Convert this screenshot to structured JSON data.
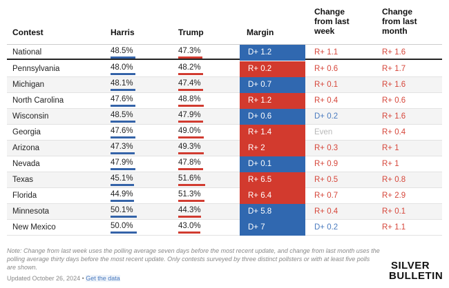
{
  "header": {
    "contest": "Contest",
    "harris": "Harris",
    "trump": "Trump",
    "margin": "Margin",
    "week": "Change from last week",
    "month": "Change from last month"
  },
  "colors": {
    "harris_bar": "#3463a8",
    "trump_bar": "#d13b30"
  },
  "table": {
    "rows": [
      {
        "contest": "National",
        "harris": {
          "value": 48.5,
          "label": "48.5%"
        },
        "trump": {
          "value": 47.3,
          "label": "47.3%"
        },
        "margin": {
          "text": "D+ 1.2",
          "color": "#3068b0"
        },
        "week": {
          "text": "R+ 1.1",
          "color": "#d6463a"
        },
        "month": {
          "text": "R+ 1.6",
          "color": "#d6463a"
        }
      },
      {
        "contest": "Pennsylvania",
        "harris": {
          "value": 48.0,
          "label": "48.0%"
        },
        "trump": {
          "value": 48.2,
          "label": "48.2%"
        },
        "margin": {
          "text": "R+ 0.2",
          "color": "#d23a2e"
        },
        "week": {
          "text": "R+ 0.6",
          "color": "#d6463a"
        },
        "month": {
          "text": "R+ 1.7",
          "color": "#d6463a"
        }
      },
      {
        "contest": "Michigan",
        "harris": {
          "value": 48.1,
          "label": "48.1%"
        },
        "trump": {
          "value": 47.4,
          "label": "47.4%"
        },
        "margin": {
          "text": "D+ 0.7",
          "color": "#3068b0"
        },
        "week": {
          "text": "R+ 0.1",
          "color": "#d6463a"
        },
        "month": {
          "text": "R+ 1.6",
          "color": "#d6463a"
        }
      },
      {
        "contest": "North Carolina",
        "harris": {
          "value": 47.6,
          "label": "47.6%"
        },
        "trump": {
          "value": 48.8,
          "label": "48.8%"
        },
        "margin": {
          "text": "R+ 1.2",
          "color": "#d23a2e"
        },
        "week": {
          "text": "R+ 0.4",
          "color": "#d6463a"
        },
        "month": {
          "text": "R+ 0.6",
          "color": "#d6463a"
        }
      },
      {
        "contest": "Wisconsin",
        "harris": {
          "value": 48.5,
          "label": "48.5%"
        },
        "trump": {
          "value": 47.9,
          "label": "47.9%"
        },
        "margin": {
          "text": "D+ 0.6",
          "color": "#3068b0"
        },
        "week": {
          "text": "D+ 0.2",
          "color": "#4a7bbf"
        },
        "month": {
          "text": "R+ 1.6",
          "color": "#d6463a"
        }
      },
      {
        "contest": "Georgia",
        "harris": {
          "value": 47.6,
          "label": "47.6%"
        },
        "trump": {
          "value": 49.0,
          "label": "49.0%"
        },
        "margin": {
          "text": "R+ 1.4",
          "color": "#d23a2e"
        },
        "week": {
          "text": "Even",
          "color": "#b8b8b8"
        },
        "month": {
          "text": "R+ 0.4",
          "color": "#d6463a"
        }
      },
      {
        "contest": "Arizona",
        "harris": {
          "value": 47.3,
          "label": "47.3%"
        },
        "trump": {
          "value": 49.3,
          "label": "49.3%"
        },
        "margin": {
          "text": "R+ 2",
          "color": "#d23a2e"
        },
        "week": {
          "text": "R+ 0.3",
          "color": "#d6463a"
        },
        "month": {
          "text": "R+ 1",
          "color": "#d6463a"
        }
      },
      {
        "contest": "Nevada",
        "harris": {
          "value": 47.9,
          "label": "47.9%"
        },
        "trump": {
          "value": 47.8,
          "label": "47.8%"
        },
        "margin": {
          "text": "D+ 0.1",
          "color": "#3068b0"
        },
        "week": {
          "text": "R+ 0.9",
          "color": "#d6463a"
        },
        "month": {
          "text": "R+ 1",
          "color": "#d6463a"
        }
      },
      {
        "contest": "Texas",
        "harris": {
          "value": 45.1,
          "label": "45.1%"
        },
        "trump": {
          "value": 51.6,
          "label": "51.6%"
        },
        "margin": {
          "text": "R+ 6.5",
          "color": "#d23a2e"
        },
        "week": {
          "text": "R+ 0.5",
          "color": "#d6463a"
        },
        "month": {
          "text": "R+ 0.8",
          "color": "#d6463a"
        }
      },
      {
        "contest": "Florida",
        "harris": {
          "value": 44.9,
          "label": "44.9%"
        },
        "trump": {
          "value": 51.3,
          "label": "51.3%"
        },
        "margin": {
          "text": "R+ 6.4",
          "color": "#d23a2e"
        },
        "week": {
          "text": "R+ 0.7",
          "color": "#d6463a"
        },
        "month": {
          "text": "R+ 2.9",
          "color": "#d6463a"
        }
      },
      {
        "contest": "Minnesota",
        "harris": {
          "value": 50.1,
          "label": "50.1%"
        },
        "trump": {
          "value": 44.3,
          "label": "44.3%"
        },
        "margin": {
          "text": "D+ 5.8",
          "color": "#3068b0"
        },
        "week": {
          "text": "R+ 0.4",
          "color": "#d6463a"
        },
        "month": {
          "text": "R+ 0.1",
          "color": "#d6463a"
        }
      },
      {
        "contest": "New Mexico",
        "harris": {
          "value": 50.0,
          "label": "50.0%"
        },
        "trump": {
          "value": 43.0,
          "label": "43.0%"
        },
        "margin": {
          "text": "D+ 7",
          "color": "#3068b0"
        },
        "week": {
          "text": "D+ 0.2",
          "color": "#4a7bbf"
        },
        "month": {
          "text": "R+ 1.1",
          "color": "#d6463a"
        }
      }
    ]
  },
  "footer": {
    "note": "Note: Change from last week uses the polling average seven days before the most recent update, and change from last month uses the polling average thirty days before the most recent update. Only contests surveyed by three distinct pollsters or with at least five polls are shown.",
    "updated": "Updated October 26, 2024 •",
    "link": "Get the data",
    "logo_top": "SILVER",
    "logo_bottom": "BULLETIN"
  }
}
